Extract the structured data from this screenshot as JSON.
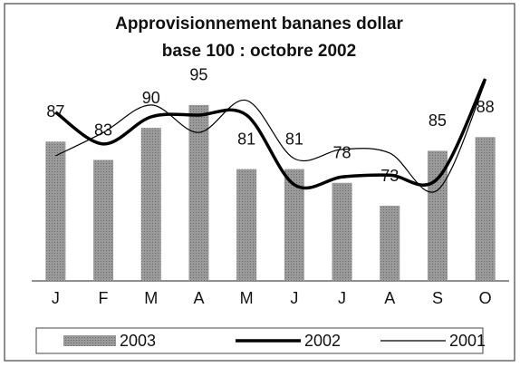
{
  "chart_data": {
    "type": "bar",
    "title": "Approvisionnement bananes dollar",
    "subtitle": "base 100 : octobre 2002",
    "categories": [
      "J",
      "F",
      "M",
      "A",
      "M",
      "J",
      "J",
      "A",
      "S",
      "O"
    ],
    "ylim": [
      56.6,
      101.5
    ],
    "series": [
      {
        "name": "2003",
        "type": "bar",
        "color": "#8c8c8c",
        "values": [
          87,
          83,
          90,
          95,
          81,
          81,
          78,
          73,
          85,
          88
        ]
      },
      {
        "name": "2002",
        "type": "line",
        "color": "#000000",
        "width": 3.5,
        "values": [
          93.4,
          86.5,
          92.4,
          92.8,
          92.8,
          77.6,
          79.3,
          79.7,
          78.9,
          100.7
        ]
      },
      {
        "name": "2001",
        "type": "line",
        "color": "#000000",
        "width": 1.2,
        "values": [
          83.9,
          89,
          95,
          89,
          96,
          83.3,
          85.3,
          84.5,
          76.4,
          100
        ]
      }
    ]
  }
}
